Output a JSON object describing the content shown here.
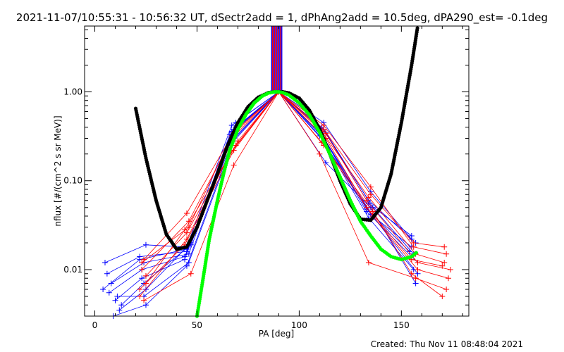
{
  "title": "2021-11-07/10:55:31 - 10:56:32 UT, dSectr2add = 1, dPhAng2add = 10.5deg, dPA290_est= -0.1deg",
  "footer": "Created: Thu Nov 11 08:48:04 2021",
  "chart_data": {
    "type": "line",
    "xlabel": "PA [deg]",
    "ylabel": "nflux [#/(cm^2 s sr MeV)]",
    "xlim": [
      -5,
      183
    ],
    "ylim": [
      0.003,
      5.5
    ],
    "yscale": "log",
    "xticks": [
      0,
      50,
      100,
      150
    ],
    "xtick_labels": [
      "0",
      "50",
      "100",
      "150"
    ],
    "yticks": [
      0.01,
      0.1,
      1.0
    ],
    "ytick_labels": [
      "0.01",
      "0.10",
      "1.00"
    ],
    "grid": false,
    "colors": {
      "red": "#ff0000",
      "blue": "#0000ff",
      "green": "#00ff00",
      "black": "#000000"
    },
    "fit_curves": [
      {
        "color": "#000000",
        "x": [
          20,
          25,
          30,
          35,
          40,
          45,
          50,
          55,
          60,
          65,
          70,
          75,
          80,
          85,
          88,
          90,
          92,
          95,
          100,
          105,
          110,
          115,
          120,
          125,
          130,
          135,
          140,
          145,
          150,
          155,
          158
        ],
        "y": [
          0.65,
          0.18,
          0.06,
          0.025,
          0.017,
          0.018,
          0.03,
          0.06,
          0.12,
          0.25,
          0.45,
          0.68,
          0.87,
          0.98,
          1.0,
          1.0,
          1.0,
          0.97,
          0.85,
          0.62,
          0.38,
          0.2,
          0.1,
          0.055,
          0.037,
          0.036,
          0.05,
          0.12,
          0.45,
          2.0,
          5.5
        ]
      },
      {
        "color": "#00ff00",
        "x": [
          50,
          53,
          56,
          60,
          63,
          66,
          70,
          74,
          78,
          82,
          85,
          88,
          90,
          92,
          95,
          100,
          105,
          110,
          115,
          120,
          125,
          130,
          135,
          140,
          145,
          150,
          155,
          158
        ],
        "y": [
          0.003,
          0.008,
          0.022,
          0.06,
          0.12,
          0.22,
          0.38,
          0.56,
          0.75,
          0.9,
          0.97,
          1.0,
          1.0,
          0.98,
          0.92,
          0.75,
          0.55,
          0.35,
          0.2,
          0.11,
          0.06,
          0.035,
          0.024,
          0.017,
          0.014,
          0.013,
          0.014,
          0.016
        ]
      }
    ],
    "vertical_lines": {
      "x_start": 86.5,
      "x_end": 91.5,
      "count": 11,
      "colors": [
        "#0000ff",
        "#ff0000",
        "#0000ff",
        "#ff0000",
        "#0000ff",
        "#ff0000",
        "#0000ff",
        "#ff0000",
        "#0000ff",
        "#ff0000",
        "#0000ff"
      ]
    },
    "series": [
      {
        "color": "#0000ff",
        "x": [
          5,
          25,
          45,
          67,
          90,
          112,
          135,
          155
        ],
        "y": [
          0.012,
          0.019,
          0.018,
          0.42,
          1.0,
          0.45,
          0.075,
          0.022
        ]
      },
      {
        "color": "#0000ff",
        "x": [
          8,
          24,
          46,
          68,
          90,
          111,
          134,
          157
        ],
        "y": [
          0.007,
          0.012,
          0.015,
          0.38,
          1.0,
          0.4,
          0.06,
          0.02
        ]
      },
      {
        "color": "#0000ff",
        "x": [
          10,
          23,
          44,
          66,
          90,
          113,
          136,
          156
        ],
        "y": [
          0.0045,
          0.008,
          0.013,
          0.33,
          1.0,
          0.35,
          0.05,
          0.015
        ]
      },
      {
        "color": "#0000ff",
        "x": [
          12,
          25,
          47,
          69,
          90,
          112,
          133,
          158
        ],
        "y": [
          0.0035,
          0.006,
          0.02,
          0.45,
          1.0,
          0.3,
          0.045,
          0.012
        ]
      },
      {
        "color": "#0000ff",
        "x": [
          6,
          22,
          45,
          67,
          90,
          110,
          135,
          155
        ],
        "y": [
          0.009,
          0.014,
          0.016,
          0.36,
          1.0,
          0.32,
          0.042,
          0.018
        ]
      },
      {
        "color": "#0000ff",
        "x": [
          11,
          24,
          46,
          68,
          90,
          112,
          134,
          156
        ],
        "y": [
          0.005,
          0.005,
          0.012,
          0.28,
          1.0,
          0.28,
          0.038,
          0.01
        ]
      },
      {
        "color": "#0000ff",
        "x": [
          9,
          25,
          45,
          70,
          90,
          113,
          135,
          157
        ],
        "y": [
          0.003,
          0.004,
          0.011,
          0.4,
          1.0,
          0.16,
          0.05,
          0.007
        ]
      },
      {
        "color": "#0000ff",
        "x": [
          7,
          23,
          44,
          68,
          90,
          112,
          134,
          155
        ],
        "y": [
          0.0055,
          0.01,
          0.014,
          0.3,
          1.0,
          0.38,
          0.055,
          0.024
        ]
      },
      {
        "color": "#0000ff",
        "x": [
          13,
          24,
          47,
          67,
          90,
          111,
          136,
          158
        ],
        "y": [
          0.004,
          0.007,
          0.019,
          0.35,
          1.0,
          0.33,
          0.04,
          0.009
        ]
      },
      {
        "color": "#0000ff",
        "x": [
          4,
          22,
          45,
          66,
          90,
          112,
          133,
          154
        ],
        "y": [
          0.006,
          0.013,
          0.017,
          0.26,
          1.0,
          0.3,
          0.048,
          0.016
        ]
      },
      {
        "color": "#ff0000",
        "x": [
          24,
          45,
          68,
          90,
          112,
          135,
          156,
          172
        ],
        "y": [
          0.013,
          0.043,
          0.35,
          1.0,
          0.42,
          0.085,
          0.018,
          0.015
        ]
      },
      {
        "color": "#ff0000",
        "x": [
          23,
          46,
          67,
          90,
          111,
          134,
          157,
          171
        ],
        "y": [
          0.01,
          0.035,
          0.3,
          1.0,
          0.36,
          0.065,
          0.015,
          0.012
        ]
      },
      {
        "color": "#ff0000",
        "x": [
          25,
          44,
          69,
          90,
          113,
          133,
          155,
          170
        ],
        "y": [
          0.007,
          0.028,
          0.25,
          1.0,
          0.3,
          0.05,
          0.013,
          0.011
        ]
      },
      {
        "color": "#ff0000",
        "x": [
          22,
          45,
          66,
          90,
          112,
          136,
          158,
          173
        ],
        "y": [
          0.005,
          0.022,
          0.2,
          1.0,
          0.25,
          0.04,
          0.01,
          0.008
        ]
      },
      {
        "color": "#ff0000",
        "x": [
          24,
          47,
          68,
          90,
          110,
          134,
          157,
          172
        ],
        "y": [
          0.0045,
          0.009,
          0.15,
          1.0,
          0.2,
          0.012,
          0.008,
          0.006
        ]
      },
      {
        "color": "#ff0000",
        "x": [
          23,
          46,
          67,
          90,
          112,
          135,
          156,
          171
        ],
        "y": [
          0.012,
          0.03,
          0.32,
          1.0,
          0.38,
          0.07,
          0.02,
          0.018
        ]
      },
      {
        "color": "#ff0000",
        "x": [
          25,
          45,
          70,
          90,
          113,
          133,
          158,
          174
        ],
        "y": [
          0.0085,
          0.026,
          0.28,
          1.0,
          0.34,
          0.06,
          0.012,
          0.01
        ]
      },
      {
        "color": "#ff0000",
        "x": [
          22,
          44,
          68,
          90,
          111,
          136,
          155,
          170
        ],
        "y": [
          0.006,
          0.019,
          0.22,
          1.0,
          0.27,
          0.045,
          0.009,
          0.005
        ]
      }
    ]
  }
}
